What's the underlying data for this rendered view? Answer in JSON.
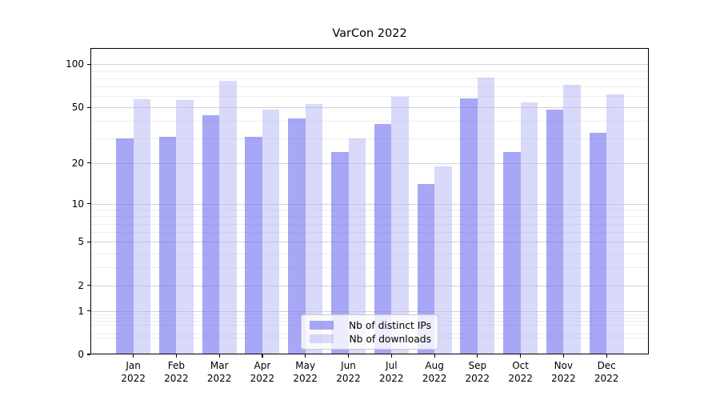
{
  "chart_data": {
    "type": "bar",
    "title": "VarCon 2022",
    "months": [
      "Jan",
      "Feb",
      "Mar",
      "Apr",
      "May",
      "Jun",
      "Jul",
      "Aug",
      "Sep",
      "Oct",
      "Nov",
      "Dec"
    ],
    "year": "2022",
    "categories": [
      "Jan 2022",
      "Feb 2022",
      "Mar 2022",
      "Apr 2022",
      "May 2022",
      "Jun 2022",
      "Jul 2022",
      "Aug 2022",
      "Sep 2022",
      "Oct 2022",
      "Nov 2022",
      "Dec 2022"
    ],
    "series": [
      {
        "name": "Nb of distinct IPs",
        "values": [
          30,
          31,
          44,
          31,
          42,
          24,
          38,
          14,
          58,
          24,
          48,
          33
        ],
        "fill": "rgba(115,115,241,0.63)",
        "swatch_color": "#a7a7f6"
      },
      {
        "name": "Nb of downloads",
        "values": [
          57,
          56,
          77,
          48,
          53,
          30,
          59,
          19,
          81,
          54,
          72,
          62
        ],
        "fill": "rgba(183,183,245,0.52)",
        "swatch_color": "#dadafa"
      }
    ],
    "xlabel": "",
    "ylabel": "",
    "y_axis": {
      "scale": "log10(1+y)",
      "ticks": [
        0,
        1,
        2,
        5,
        10,
        20,
        50,
        100
      ],
      "minor_ticks": [
        0.3,
        0.4,
        0.6,
        0.7,
        0.8,
        0.9,
        3,
        4,
        6,
        7,
        8,
        9,
        30,
        40,
        60,
        70,
        80,
        90
      ],
      "ylim": [
        0,
        130
      ]
    },
    "legend_position": "lower center",
    "grid": "on"
  },
  "colors": {
    "background": "#ffffff",
    "axis": "#000000",
    "grid_major": "#d2d2d2",
    "grid_minor": "#ededed",
    "bar_distinct_ips": "#a7a7f6",
    "bar_downloads": "#dadafa"
  }
}
